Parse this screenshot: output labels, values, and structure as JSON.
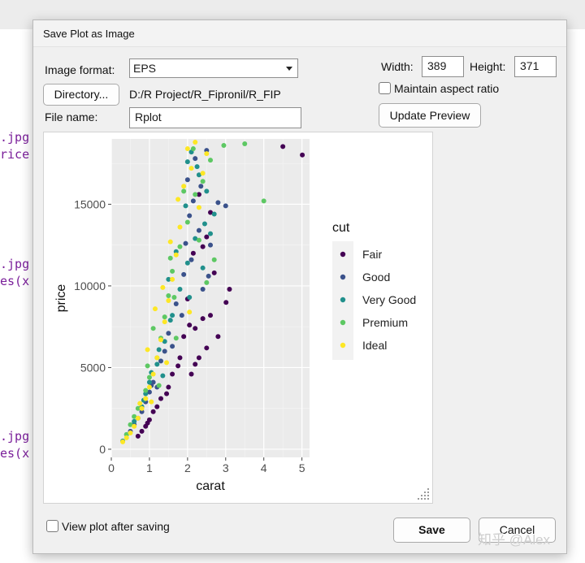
{
  "background": {
    "code_lines": [
      ".jpg'",
      "rice",
      ".jpg'",
      "es(x",
      ".jpg'",
      "es(x"
    ]
  },
  "dialog": {
    "title": "Save Plot as Image",
    "image_format_label": "Image format:",
    "image_format_value": "EPS",
    "directory_button": "Directory...",
    "directory_path": "D:/R Project/R_Fipronil/R_FIP",
    "file_name_label": "File name:",
    "file_name_value": "Rplot",
    "width_label": "Width:",
    "width_value": "389",
    "height_label": "Height:",
    "height_value": "371",
    "maintain_aspect_label": "Maintain aspect ratio",
    "maintain_aspect_checked": false,
    "update_preview_button": "Update Preview",
    "view_after_saving_label": "View plot after saving",
    "view_after_saving_checked": false,
    "save_button": "Save",
    "cancel_button": "Cancel"
  },
  "watermark": "知乎 @Alex",
  "chart_data": {
    "type": "scatter",
    "xlabel": "carat",
    "ylabel": "price",
    "xlim": [
      0,
      5.2
    ],
    "ylim": [
      -500,
      19000
    ],
    "x_ticks": [
      0,
      1,
      2,
      3,
      4,
      5
    ],
    "y_ticks": [
      0,
      5000,
      10000,
      15000
    ],
    "x_tick_labels": [
      "0",
      "1",
      "2",
      "3",
      "4",
      "5"
    ],
    "y_tick_labels": [
      "0",
      "5000",
      "10000",
      "15000"
    ],
    "grid": true,
    "legend_title": "cut",
    "legend_position": "right",
    "series": [
      {
        "name": "Fair",
        "color": "#440154",
        "points": [
          [
            4.5,
            18531
          ],
          [
            5.01,
            18018
          ],
          [
            3.01,
            8990
          ],
          [
            2.8,
            6900
          ],
          [
            2.5,
            6200
          ],
          [
            2.2,
            5200
          ],
          [
            2.3,
            5600
          ],
          [
            2.1,
            4600
          ],
          [
            2.4,
            8000
          ],
          [
            3.1,
            9800
          ],
          [
            2.7,
            10800
          ],
          [
            2.6,
            8200
          ],
          [
            1.8,
            5600
          ],
          [
            1.5,
            3800
          ],
          [
            1.2,
            2600
          ],
          [
            1.0,
            1800
          ],
          [
            0.9,
            1400
          ],
          [
            0.8,
            1100
          ],
          [
            1.6,
            4600
          ],
          [
            2.0,
            9200
          ],
          [
            1.3,
            3100
          ],
          [
            0.7,
            800
          ],
          [
            2.2,
            7400
          ],
          [
            1.9,
            6900
          ],
          [
            2.4,
            12400
          ],
          [
            2.3,
            15600
          ],
          [
            2.6,
            14500
          ],
          [
            1.1,
            2300
          ],
          [
            0.95,
            1600
          ],
          [
            1.75,
            5100
          ],
          [
            2.05,
            7600
          ],
          [
            1.45,
            3400
          ],
          [
            2.5,
            13000
          ],
          [
            2.15,
            12000
          ]
        ]
      },
      {
        "name": "Good",
        "color": "#3b528b",
        "points": [
          [
            2.0,
            16500
          ],
          [
            2.2,
            17800
          ],
          [
            2.5,
            18300
          ],
          [
            2.8,
            15100
          ],
          [
            3.0,
            14900
          ],
          [
            2.3,
            13400
          ],
          [
            2.1,
            11600
          ],
          [
            1.9,
            10700
          ],
          [
            1.7,
            8900
          ],
          [
            1.5,
            7100
          ],
          [
            1.3,
            5400
          ],
          [
            1.1,
            4100
          ],
          [
            1.0,
            3500
          ],
          [
            0.9,
            2900
          ],
          [
            0.7,
            1900
          ],
          [
            0.5,
            1100
          ],
          [
            2.4,
            9800
          ],
          [
            2.6,
            12500
          ],
          [
            1.6,
            6300
          ],
          [
            1.2,
            3800
          ],
          [
            2.05,
            14300
          ],
          [
            1.85,
            8200
          ],
          [
            0.8,
            2300
          ],
          [
            2.35,
            16100
          ],
          [
            2.55,
            10600
          ],
          [
            1.4,
            6000
          ],
          [
            0.6,
            1500
          ],
          [
            2.15,
            15200
          ],
          [
            1.95,
            12600
          ],
          [
            1.05,
            3900
          ]
        ]
      },
      {
        "name": "Very Good",
        "color": "#21908c",
        "points": [
          [
            2.0,
            17600
          ],
          [
            2.1,
            18200
          ],
          [
            2.3,
            16800
          ],
          [
            2.5,
            15800
          ],
          [
            2.7,
            14400
          ],
          [
            2.2,
            12900
          ],
          [
            2.0,
            11400
          ],
          [
            1.8,
            9800
          ],
          [
            1.6,
            8200
          ],
          [
            1.4,
            6600
          ],
          [
            1.2,
            5200
          ],
          [
            1.0,
            4100
          ],
          [
            0.9,
            3400
          ],
          [
            0.8,
            2600
          ],
          [
            0.6,
            1700
          ],
          [
            0.4,
            900
          ],
          [
            0.3,
            500
          ],
          [
            2.4,
            11100
          ],
          [
            2.6,
            13200
          ],
          [
            1.5,
            10400
          ],
          [
            1.7,
            12100
          ],
          [
            2.05,
            9300
          ],
          [
            1.25,
            6100
          ],
          [
            1.35,
            4500
          ],
          [
            0.85,
            3000
          ],
          [
            2.25,
            17300
          ],
          [
            2.45,
            13800
          ],
          [
            1.95,
            14900
          ],
          [
            1.55,
            7900
          ],
          [
            1.05,
            4700
          ]
        ]
      },
      {
        "name": "Premium",
        "color": "#5dc863",
        "points": [
          [
            3.5,
            18700
          ],
          [
            4.0,
            15200
          ],
          [
            2.95,
            18600
          ],
          [
            2.6,
            17700
          ],
          [
            2.4,
            16400
          ],
          [
            2.2,
            15600
          ],
          [
            2.0,
            13900
          ],
          [
            1.8,
            12400
          ],
          [
            1.6,
            10900
          ],
          [
            1.5,
            9400
          ],
          [
            1.4,
            8100
          ],
          [
            1.3,
            6800
          ],
          [
            1.2,
            5600
          ],
          [
            1.0,
            4400
          ],
          [
            0.9,
            3600
          ],
          [
            0.7,
            2500
          ],
          [
            0.5,
            1500
          ],
          [
            0.4,
            900
          ],
          [
            2.5,
            10200
          ],
          [
            2.3,
            12800
          ],
          [
            1.7,
            6800
          ],
          [
            1.1,
            7400
          ],
          [
            0.95,
            5100
          ],
          [
            1.55,
            11700
          ],
          [
            2.15,
            18400
          ],
          [
            1.9,
            15800
          ],
          [
            2.7,
            11600
          ],
          [
            1.65,
            9300
          ],
          [
            1.25,
            3900
          ],
          [
            0.6,
            2000
          ]
        ]
      },
      {
        "name": "Ideal",
        "color": "#fde725",
        "points": [
          [
            2.0,
            18400
          ],
          [
            2.2,
            18800
          ],
          [
            2.1,
            17200
          ],
          [
            1.9,
            16100
          ],
          [
            2.3,
            14800
          ],
          [
            1.8,
            13600
          ],
          [
            1.7,
            11900
          ],
          [
            1.6,
            10400
          ],
          [
            1.5,
            9100
          ],
          [
            1.4,
            7800
          ],
          [
            1.3,
            6700
          ],
          [
            1.2,
            5600
          ],
          [
            1.1,
            4600
          ],
          [
            1.0,
            3800
          ],
          [
            0.9,
            3100
          ],
          [
            0.8,
            2500
          ],
          [
            0.7,
            1900
          ],
          [
            0.6,
            1400
          ],
          [
            0.5,
            1000
          ],
          [
            0.4,
            700
          ],
          [
            0.3,
            450
          ],
          [
            2.4,
            16900
          ],
          [
            2.5,
            18100
          ],
          [
            1.75,
            15300
          ],
          [
            1.55,
            12700
          ],
          [
            1.35,
            9900
          ],
          [
            1.15,
            8600
          ],
          [
            0.95,
            6100
          ],
          [
            2.05,
            8400
          ],
          [
            1.45,
            5300
          ],
          [
            0.75,
            2800
          ],
          [
            1.05,
            2900
          ]
        ]
      }
    ]
  }
}
